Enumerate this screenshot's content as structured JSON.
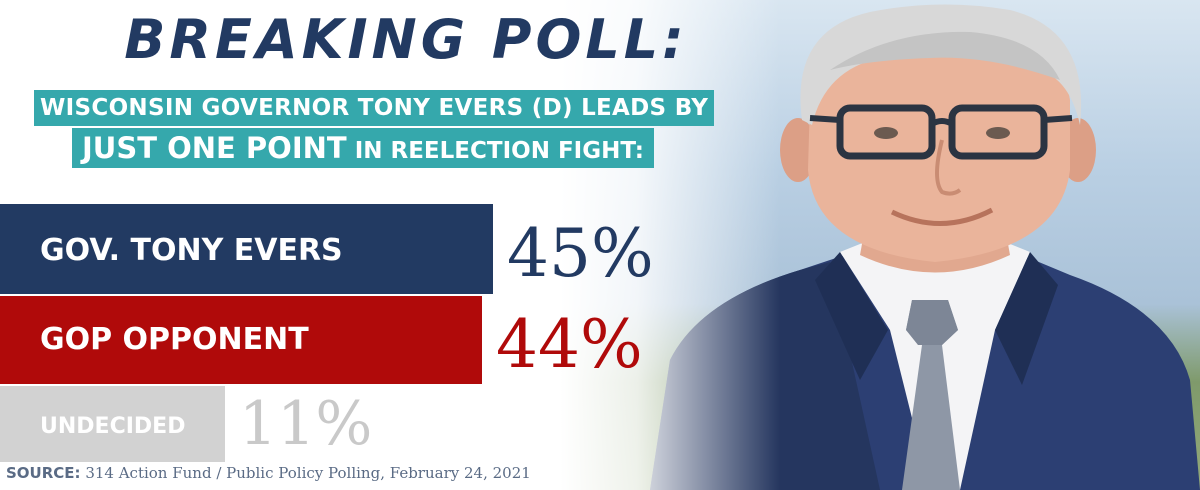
{
  "headline": "BREAKING POLL:",
  "subhead": {
    "line1": "WISCONSIN GOVERNOR TONY EVERS (D) LEADS BY",
    "line2_emphasis": "JUST ONE POINT",
    "line2_rest": " IN REELECTION FIGHT:"
  },
  "chart_data": {
    "type": "bar",
    "orientation": "horizontal",
    "categories": [
      "GOV. TONY EVERS",
      "GOP OPPONENT",
      "UNDECIDED"
    ],
    "values": [
      45,
      44,
      11
    ],
    "value_labels": [
      "45%",
      "44%",
      "11%"
    ],
    "colors": [
      "#223a62",
      "#b00a0a",
      "#d2d2d2"
    ],
    "value_colors": [
      "#223a62",
      "#b00a0a",
      "#c9c9c9"
    ],
    "title": "",
    "xlabel": "",
    "ylabel": "",
    "unit": "%",
    "grid": false
  },
  "source": {
    "tag": "SOURCE:",
    "text": " 314 Action Fund / Public Policy Polling, February 24, 2021"
  },
  "colors": {
    "navy": "#223a62",
    "red": "#b00a0a",
    "teal": "#35a8ac",
    "gray": "#d2d2d2"
  }
}
